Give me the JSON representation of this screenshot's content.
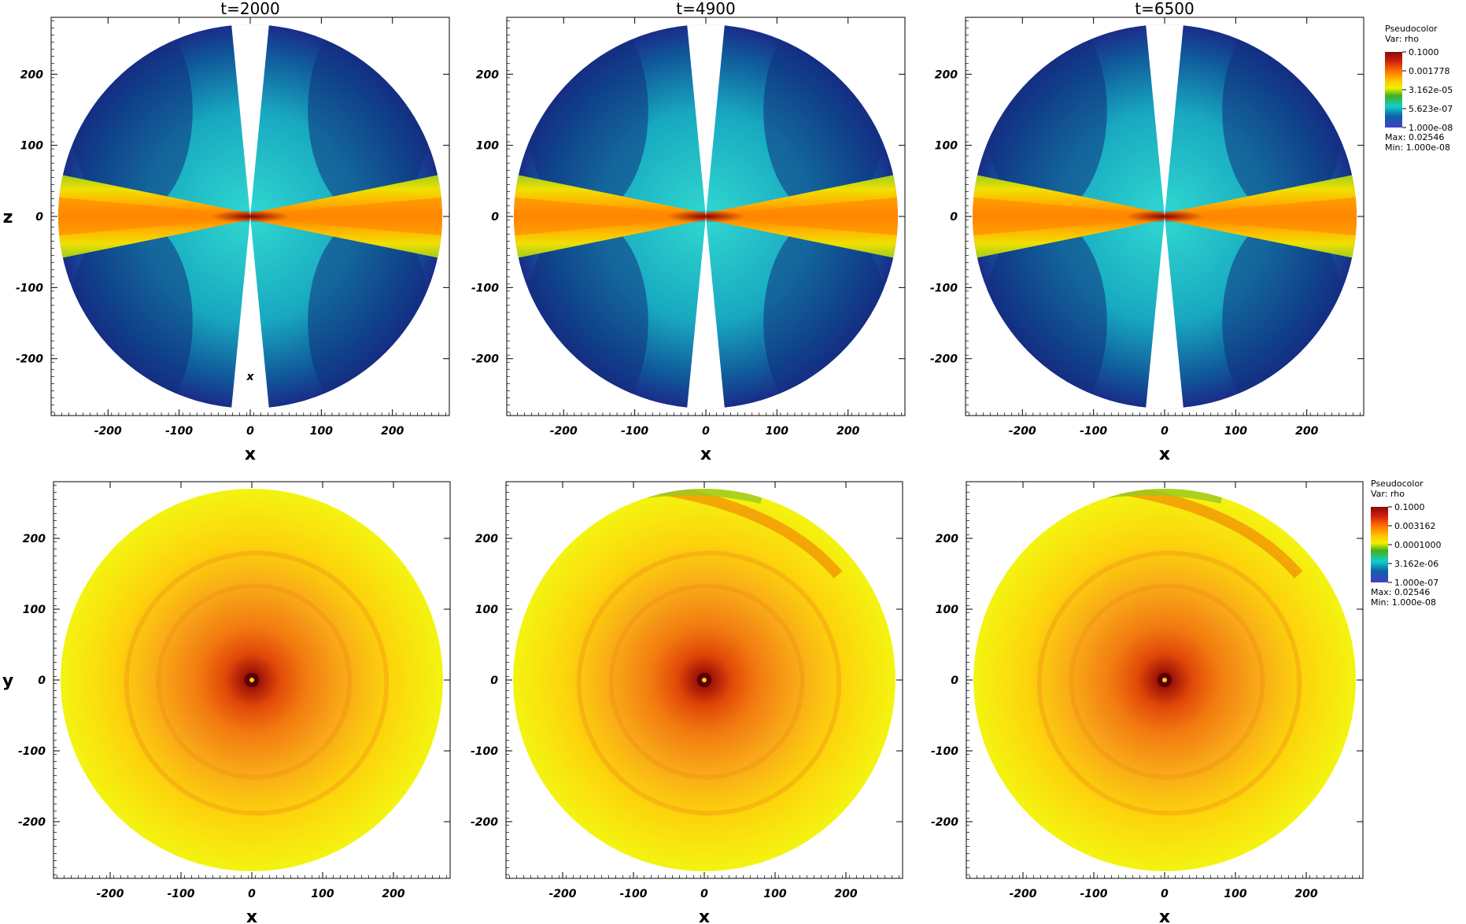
{
  "panels": [
    {
      "title": "t=2000",
      "view": "xz",
      "xlabel": "x",
      "ylabel": "z",
      "marker": "x"
    },
    {
      "title": "t=4900",
      "view": "xz",
      "xlabel": "x",
      "ylabel": "",
      "marker": ""
    },
    {
      "title": "t=6500",
      "view": "xz",
      "xlabel": "x",
      "ylabel": "",
      "marker": ""
    },
    {
      "title": "",
      "view": "xy",
      "xlabel": "x",
      "ylabel": "y",
      "marker": ""
    },
    {
      "title": "",
      "view": "xy",
      "xlabel": "x",
      "ylabel": "",
      "marker": ""
    },
    {
      "title": "",
      "view": "xy",
      "xlabel": "x",
      "ylabel": "",
      "marker": ""
    }
  ],
  "ticks": [
    "-200",
    "-100",
    "0",
    "100",
    "200"
  ],
  "legends": [
    {
      "line1": "Pseudocolor",
      "line2": "Var: rho",
      "levels": [
        "0.1000",
        "0.001778",
        "3.162e-05",
        "5.623e-07",
        "1.000e-08"
      ],
      "max": "Max:  0.02546",
      "min": "Min:  1.000e-08"
    },
    {
      "line1": "Pseudocolor",
      "line2": "Var: rho",
      "levels": [
        "0.1000",
        "0.003162",
        "0.0001000",
        "3.162e-06",
        "1.000e-07"
      ],
      "max": "Max:  0.02546",
      "min": "Min:  1.000e-08"
    }
  ],
  "colormap": [
    "#7a0a0a",
    "#c0200a",
    "#f06010",
    "#ffb000",
    "#ffee00",
    "#a0d000",
    "#20b030",
    "#10c0c0",
    "#1060a0",
    "#3030a0"
  ]
}
